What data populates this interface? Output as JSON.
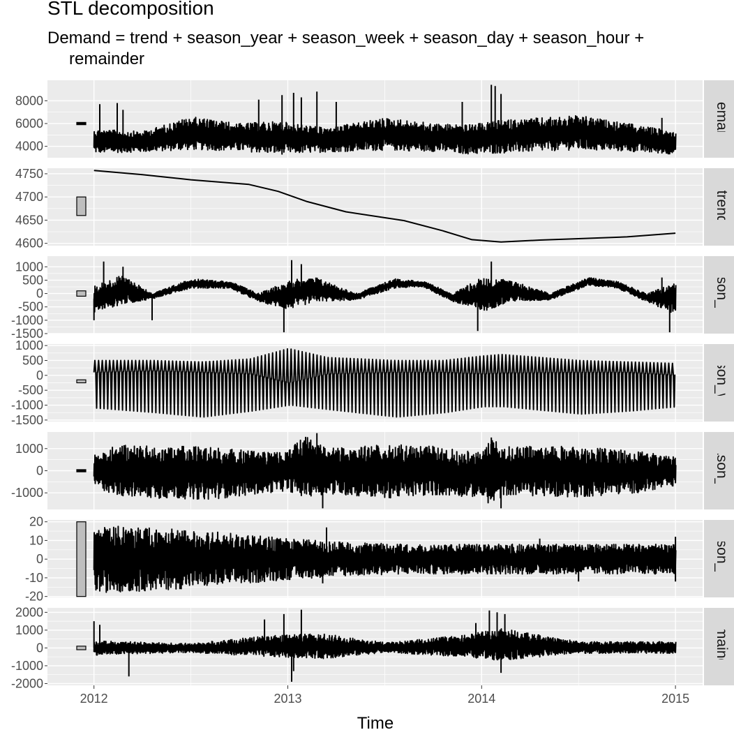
{
  "title": "STL decomposition",
  "subtitle_line1": "Demand = trend + season_year + season_week + season_day + season_hour +",
  "subtitle_line2": "remainder",
  "chart_data": {
    "type": "line",
    "title": "STL decomposition",
    "subtitle": "Demand = trend + season_year + season_week + season_day + season_hour + remainder",
    "xlabel": "Time",
    "x_ticks": [
      "2012",
      "2013",
      "2014",
      "2015"
    ],
    "xlim": [
      2011.76,
      2015.14
    ],
    "grid": true,
    "panels": [
      {
        "name": "Demand",
        "ylim": [
          3000,
          9800
        ],
        "ticks": [
          4000,
          6000,
          8000
        ],
        "scale_bar": [
          5900,
          6100
        ],
        "kind": "noisy",
        "envelope": {
          "x": [
            2012.0,
            2012.25,
            2012.5,
            2012.75,
            2012.95,
            2013.2,
            2013.5,
            2013.75,
            2013.95,
            2014.1,
            2014.5,
            2014.75,
            2015.0
          ],
          "low": [
            3400,
            3500,
            3700,
            3600,
            3300,
            3500,
            3650,
            3550,
            3300,
            3400,
            3700,
            3550,
            3300
          ],
          "high": [
            5500,
            5300,
            6600,
            6000,
            6200,
            5600,
            6500,
            6000,
            5900,
            6300,
            6700,
            6000,
            5300
          ]
        },
        "spikes": [
          [
            2012.03,
            7700
          ],
          [
            2012.12,
            7800
          ],
          [
            2012.15,
            7200
          ],
          [
            2012.85,
            8100
          ],
          [
            2012.97,
            8500
          ],
          [
            2013.03,
            8700
          ],
          [
            2013.07,
            8300
          ],
          [
            2013.15,
            8800
          ],
          [
            2013.25,
            7900
          ],
          [
            2013.9,
            7900
          ],
          [
            2014.05,
            9400
          ],
          [
            2014.07,
            9300
          ],
          [
            2014.1,
            8600
          ],
          [
            2014.93,
            6500
          ]
        ]
      },
      {
        "name": "trend",
        "ylim": [
          4595,
          4762
        ],
        "ticks": [
          4600,
          4650,
          4700,
          4750
        ],
        "scale_bar": [
          4660,
          4700
        ],
        "kind": "line",
        "x": [
          2012.0,
          2012.25,
          2012.5,
          2012.8,
          2012.95,
          2013.1,
          2013.3,
          2013.6,
          2013.8,
          2013.95,
          2014.1,
          2014.3,
          2014.5,
          2014.75,
          2015.0
        ],
        "y": [
          4757,
          4748,
          4737,
          4727,
          4712,
          4690,
          4668,
          4649,
          4627,
          4608,
          4603,
          4607,
          4610,
          4614,
          4622
        ]
      },
      {
        "name": "season_year",
        "ylim": [
          -1500,
          1400
        ],
        "ticks": [
          -1500,
          -1000,
          -500,
          0,
          500,
          1000
        ],
        "scale_bar": [
          -100,
          100
        ],
        "kind": "noisy",
        "envelope": {
          "x": [
            2012.0,
            2012.15,
            2012.3,
            2012.5,
            2012.7,
            2012.85,
            2013.0,
            2013.15,
            2013.35,
            2013.55,
            2013.7,
            2013.85,
            2014.0,
            2014.15,
            2014.35,
            2014.55,
            2014.7,
            2014.85,
            2015.0
          ],
          "low": [
            -700,
            -400,
            -200,
            200,
            200,
            -300,
            -600,
            -300,
            -250,
            200,
            250,
            -300,
            -700,
            -300,
            -250,
            300,
            200,
            -300,
            -800
          ],
          "high": [
            300,
            700,
            0,
            550,
            450,
            0,
            500,
            600,
            0,
            550,
            450,
            0,
            600,
            500,
            0,
            600,
            450,
            0,
            400
          ]
        },
        "spikes": [
          [
            2012.05,
            1200
          ],
          [
            2012.15,
            1000
          ],
          [
            2012.0,
            -1000
          ],
          [
            2012.3,
            -1000
          ],
          [
            2013.02,
            1250
          ],
          [
            2013.07,
            1100
          ],
          [
            2012.98,
            -1450
          ],
          [
            2014.05,
            1200
          ],
          [
            2013.98,
            -1400
          ],
          [
            2014.97,
            -1450
          ],
          [
            2014.93,
            600
          ]
        ]
      },
      {
        "name": "season_week",
        "ylim": [
          -1550,
          1050
        ],
        "ticks": [
          -1500,
          -1000,
          -500,
          0,
          500,
          1000
        ],
        "scale_bar": [
          -250,
          -150
        ],
        "kind": "osc",
        "osc": {
          "period": 0.0191,
          "x": [
            2012.0,
            2012.3,
            2012.55,
            2012.8,
            2013.0,
            2013.2,
            2013.55,
            2013.8,
            2014.0,
            2014.1,
            2014.5,
            2014.75,
            2015.0
          ],
          "low": [
            -1100,
            -1250,
            -1400,
            -1200,
            -1000,
            -1150,
            -1400,
            -1250,
            -1050,
            -1050,
            -1300,
            -1200,
            -1050
          ],
          "high": [
            500,
            500,
            450,
            550,
            900,
            600,
            500,
            500,
            650,
            700,
            500,
            450,
            400
          ],
          "mid": [
            100,
            150,
            100,
            50,
            -250,
            50,
            100,
            100,
            50,
            80,
            100,
            100,
            0
          ]
        }
      },
      {
        "name": "season_day",
        "ylim": [
          -1750,
          1750
        ],
        "ticks": [
          -1000,
          0,
          1000
        ],
        "scale_bar": [
          -50,
          50
        ],
        "kind": "noisy",
        "envelope": {
          "x": [
            2012.0,
            2012.1,
            2012.3,
            2012.6,
            2012.8,
            2013.0,
            2013.08,
            2013.2,
            2013.5,
            2013.75,
            2014.0,
            2014.05,
            2014.12,
            2014.5,
            2014.8,
            2015.0
          ],
          "low": [
            -700,
            -1100,
            -1250,
            -1300,
            -1100,
            -900,
            -1200,
            -1050,
            -1250,
            -1100,
            -1200,
            -1600,
            -1100,
            -1200,
            -1000,
            -700
          ],
          "high": [
            700,
            1200,
            1100,
            1100,
            900,
            900,
            1600,
            1000,
            1200,
            1100,
            800,
            1500,
            1100,
            1100,
            900,
            600
          ]
        },
        "spikes": [
          [
            2013.15,
            1700
          ],
          [
            2013.18,
            -1700
          ],
          [
            2014.05,
            1500
          ],
          [
            2014.1,
            -1700
          ]
        ]
      },
      {
        "name": "season_hour",
        "ylim": [
          -20.5,
          21
        ],
        "ticks": [
          -20,
          -10,
          0,
          10,
          20
        ],
        "scale_bar": [
          -20,
          20
        ],
        "kind": "noisy",
        "envelope": {
          "x": [
            2012.0,
            2012.3,
            2012.7,
            2013.0,
            2013.3,
            2013.6,
            2014.0,
            2014.5,
            2015.0
          ],
          "low": [
            -18,
            -17,
            -14,
            -11,
            -9,
            -8,
            -8,
            -8,
            -8
          ],
          "high": [
            18,
            17,
            14,
            11,
            9,
            8,
            8,
            8,
            8
          ]
        },
        "spikes": [
          [
            2012.85,
            11
          ],
          [
            2013.2,
            17
          ],
          [
            2013.18,
            -13
          ],
          [
            2014.3,
            11
          ],
          [
            2014.5,
            -12
          ],
          [
            2015.0,
            12
          ],
          [
            2015.0,
            -12
          ]
        ]
      },
      {
        "name": "remainder",
        "ylim": [
          -2100,
          2250
        ],
        "ticks": [
          -2000,
          -1000,
          0,
          1000,
          2000
        ],
        "scale_bar": [
          -100,
          100
        ],
        "kind": "noisy",
        "envelope": {
          "x": [
            2012.0,
            2012.5,
            2012.9,
            2013.2,
            2013.5,
            2013.9,
            2014.1,
            2014.5,
            2015.0
          ],
          "low": [
            -400,
            -250,
            -500,
            -600,
            -250,
            -500,
            -700,
            -300,
            -300
          ],
          "high": [
            400,
            250,
            700,
            800,
            300,
            700,
            1100,
            350,
            350
          ]
        },
        "spikes": [
          [
            2012.0,
            1500
          ],
          [
            2012.03,
            1300
          ],
          [
            2012.18,
            -1600
          ],
          [
            2012.88,
            1600
          ],
          [
            2012.98,
            1900
          ],
          [
            2013.07,
            2150
          ],
          [
            2013.02,
            -1900
          ],
          [
            2013.03,
            -1300
          ],
          [
            2014.04,
            2100
          ],
          [
            2014.08,
            2000
          ],
          [
            2013.97,
            1400
          ],
          [
            2014.1,
            -1400
          ],
          [
            2014.12,
            1900
          ]
        ]
      }
    ]
  }
}
